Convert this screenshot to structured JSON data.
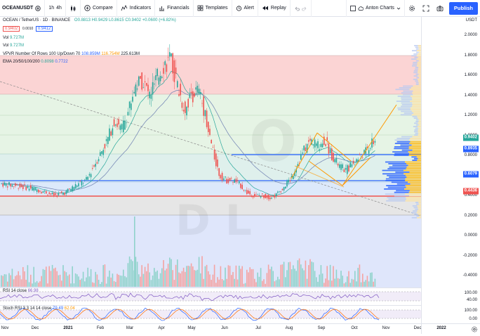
{
  "toolbar": {
    "symbol": "OCEANUSDT",
    "interval": "1h",
    "interval2": "4h",
    "compare": "Compare",
    "indicators": "Indicators",
    "financials": "Financials",
    "templates": "Templates",
    "alert": "Alert",
    "replay": "Replay",
    "chart_name": "Anton Charts",
    "publish": "Publish"
  },
  "legend": {
    "title": "OCEAN / TetherUS · 1D · BINANCE",
    "ohlc": "O0.8813 H0.9429 L0.8615 C0.9402 +0.0600 (+6.82%)",
    "price1": "0.9402",
    "spread": "0.0010",
    "price2": "0.9412",
    "vol1_label": "Vol",
    "vol1": "9.727M",
    "vol2_label": "Vol",
    "vol2": "9.727M",
    "vpvr_label": "VPVR Number Of Rows 100 Up/Down 70",
    "vpvr_v1": "108.859M",
    "vpvr_v2": "116.754M",
    "vpvr_v3": "225.613M",
    "ema_label": "EMA 20/50/100/200",
    "ema1": "0.8098",
    "ema2": "0.7722",
    "rsi_label": "RSI 14 close",
    "rsi_val": "66.98",
    "stoch_label": "Stoch RSI 3 3 14 14 close",
    "stoch_k": "79.49",
    "stoch_d": "62.04"
  },
  "price_axis": {
    "currency": "USDT",
    "labels": [
      "2.0000",
      "1.8000",
      "1.6000",
      "1.4000",
      "1.2000",
      "1.0000",
      "0.8000",
      "0.6000",
      "0.4000",
      "0.2000",
      "0.0000",
      "-0.2000",
      "-0.4000"
    ],
    "tags": [
      {
        "value": "0.9402",
        "color": "#26a69a"
      },
      {
        "value": "0.8935",
        "color": "#2962ff"
      },
      {
        "value": "0.6079",
        "color": "#2962ff"
      },
      {
        "value": "0.4436",
        "color": "#ef5350"
      }
    ],
    "rsi_labels": [
      "100.00",
      "40.00"
    ],
    "stoch_labels": [
      "100.00",
      "0.00"
    ]
  },
  "time_axis": [
    "Nov",
    "Dec",
    "2021",
    "Feb",
    "Mar",
    "Apr",
    "May",
    "Jun",
    "Jul",
    "Aug",
    "Sep",
    "Oct",
    "Nov",
    "Dec",
    "2022"
  ],
  "colors": {
    "up": "#26a69a",
    "down": "#ef5350",
    "accent": "#2962ff",
    "orange": "#ff9800"
  }
}
